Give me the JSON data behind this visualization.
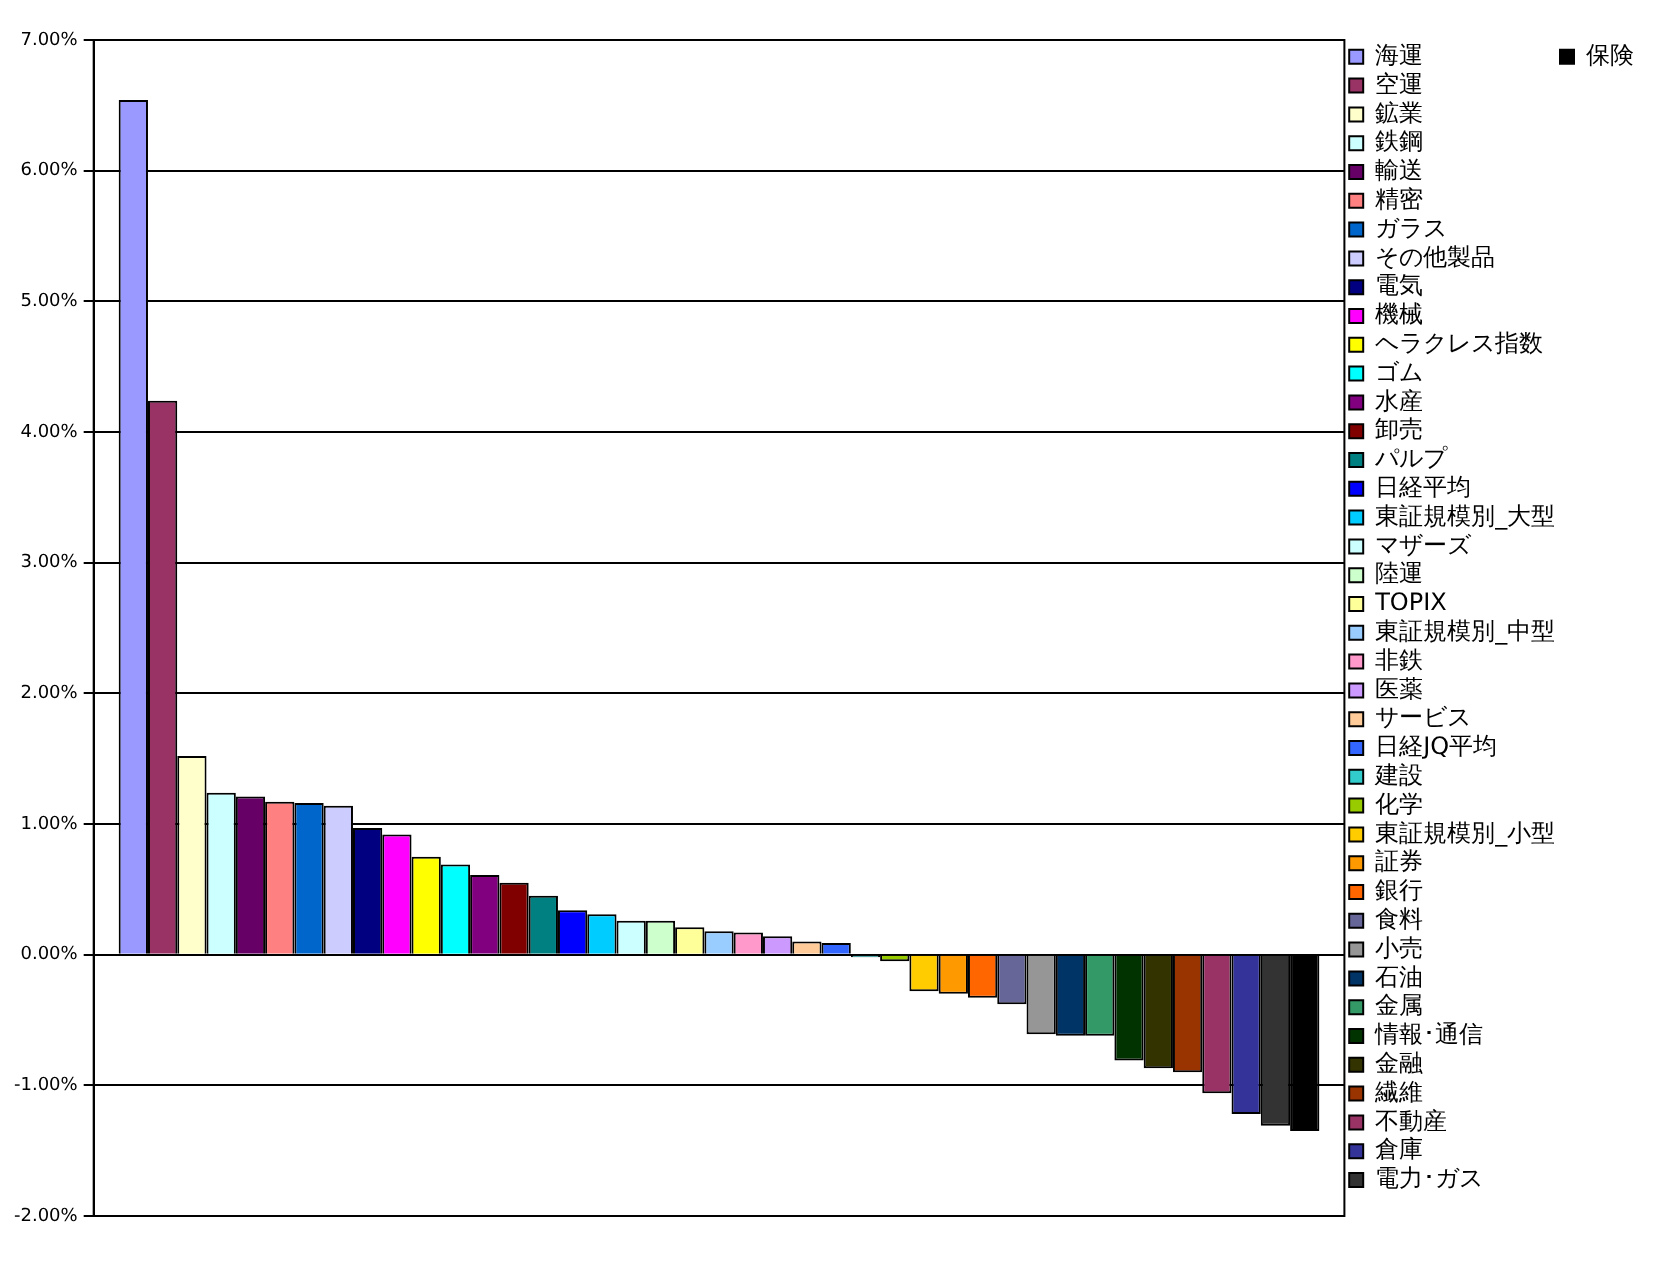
{
  "chart_data": {
    "type": "bar",
    "categories": [
      null
    ],
    "ylim": [
      -2,
      7
    ],
    "yticks": [
      {
        "value": -2,
        "label": "-2.00%"
      },
      {
        "value": -1,
        "label": "-1.00%"
      },
      {
        "value": 0,
        "label": "0.00%"
      },
      {
        "value": 1,
        "label": "1.00%"
      },
      {
        "value": 2,
        "label": "2.00%"
      },
      {
        "value": 3,
        "label": "3.00%"
      },
      {
        "value": 4,
        "label": "4.00%"
      },
      {
        "value": 5,
        "label": "5.00%"
      },
      {
        "value": 6,
        "label": "6.00%"
      },
      {
        "value": 7,
        "label": "7.00%"
      }
    ],
    "grid": "y",
    "legend": "right",
    "tick_labels": "y",
    "series": [
      {
        "name": "海運",
        "color": "#9999ff",
        "values": [
          6.54
        ]
      },
      {
        "name": "空運",
        "color": "#993366",
        "values": [
          4.24
        ]
      },
      {
        "name": "鉱業",
        "color": "#ffffcc",
        "values": [
          1.52
        ]
      },
      {
        "name": "鉄鋼",
        "color": "#ccffff",
        "values": [
          1.24
        ]
      },
      {
        "name": "輸送",
        "color": "#660066",
        "values": [
          1.21
        ]
      },
      {
        "name": "精密",
        "color": "#ff8080",
        "values": [
          1.17
        ]
      },
      {
        "name": "ガラス",
        "color": "#0066cc",
        "values": [
          1.16
        ]
      },
      {
        "name": "その他製品",
        "color": "#ccccff",
        "values": [
          1.14
        ]
      },
      {
        "name": "電気",
        "color": "#000080",
        "values": [
          0.97
        ]
      },
      {
        "name": "機械",
        "color": "#ff00ff",
        "values": [
          0.92
        ]
      },
      {
        "name": "ヘラクレス指数",
        "color": "#ffff00",
        "values": [
          0.75
        ]
      },
      {
        "name": "ゴム",
        "color": "#00ffff",
        "values": [
          0.69
        ]
      },
      {
        "name": "水産",
        "color": "#800080",
        "values": [
          0.61
        ]
      },
      {
        "name": "卸売",
        "color": "#800000",
        "values": [
          0.55
        ]
      },
      {
        "name": "パルプ",
        "color": "#008080",
        "values": [
          0.45
        ]
      },
      {
        "name": "日経平均",
        "color": "#0000ff",
        "values": [
          0.34
        ]
      },
      {
        "name": "東証規模別_大型",
        "color": "#00ccff",
        "values": [
          0.31
        ]
      },
      {
        "name": "マザーズ",
        "color": "#ccffff",
        "values": [
          0.26
        ]
      },
      {
        "name": "陸運",
        "color": "#ccffcc",
        "values": [
          0.26
        ]
      },
      {
        "name": "TOPIX",
        "color": "#ffff99",
        "values": [
          0.21
        ]
      },
      {
        "name": "東証規模別_中型",
        "color": "#99ccff",
        "values": [
          0.18
        ]
      },
      {
        "name": "非鉄",
        "color": "#ff99cc",
        "values": [
          0.17
        ]
      },
      {
        "name": "医薬",
        "color": "#cc99ff",
        "values": [
          0.14
        ]
      },
      {
        "name": "サービス",
        "color": "#ffcc99",
        "values": [
          0.1
        ]
      },
      {
        "name": "日経JQ平均",
        "color": "#3366ff",
        "values": [
          0.09
        ]
      },
      {
        "name": "建設",
        "color": "#33cccc",
        "values": [
          -0.02
        ]
      },
      {
        "name": "化学",
        "color": "#99cc00",
        "values": [
          -0.05
        ]
      },
      {
        "name": "東証規模別_小型",
        "color": "#ffcc00",
        "values": [
          -0.28
        ]
      },
      {
        "name": "証券",
        "color": "#ff9900",
        "values": [
          -0.3
        ]
      },
      {
        "name": "銀行",
        "color": "#ff6600",
        "values": [
          -0.33
        ]
      },
      {
        "name": "食料",
        "color": "#666699",
        "values": [
          -0.38
        ]
      },
      {
        "name": "小売",
        "color": "#969696",
        "values": [
          -0.61
        ]
      },
      {
        "name": "石油",
        "color": "#003366",
        "values": [
          -0.62
        ]
      },
      {
        "name": "金属",
        "color": "#339966",
        "values": [
          -0.62
        ]
      },
      {
        "name": "情報･通信",
        "color": "#003300",
        "values": [
          -0.81
        ]
      },
      {
        "name": "金融",
        "color": "#333300",
        "values": [
          -0.87
        ]
      },
      {
        "name": "繊維",
        "color": "#993300",
        "values": [
          -0.9
        ]
      },
      {
        "name": "不動産",
        "color": "#993366",
        "values": [
          -1.06
        ]
      },
      {
        "name": "倉庫",
        "color": "#333399",
        "values": [
          -1.22
        ]
      },
      {
        "name": "電力･ガス",
        "color": "#333333",
        "values": [
          -1.31
        ]
      },
      {
        "name": "保険",
        "color": "#000000",
        "values": [
          -1.35
        ]
      }
    ]
  }
}
